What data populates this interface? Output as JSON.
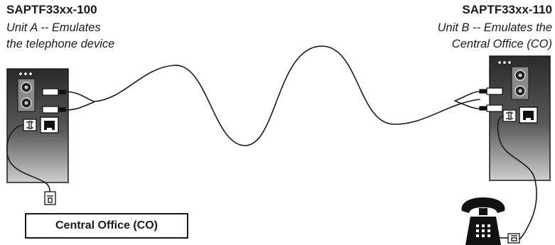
{
  "unit_a": {
    "model": "SAPTF33xx-100",
    "description_line1": "Unit A -- Emulates",
    "description_line2": "the telephone device"
  },
  "unit_b": {
    "model": "SAPTF33xx-110",
    "description_line1": "Unit B -- Emulates the",
    "description_line2": "Central Office (CO)"
  },
  "central_office_box": {
    "label": "Central Office (CO)"
  },
  "colors": {
    "ink": "#1a1a1a",
    "unit_body_dark": "#2a2a2a",
    "unit_body_light": "#cfcfcf"
  },
  "icons": [
    "rca-connector-icon",
    "rj11-jack-icon",
    "rj11-plug-icon",
    "telephone-icon"
  ]
}
